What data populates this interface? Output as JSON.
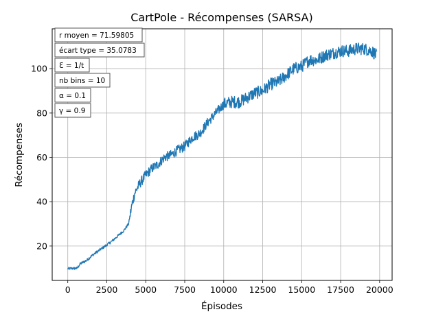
{
  "chart_data": {
    "type": "line",
    "title": "CartPole - Récompenses (SARSA)",
    "xlabel": "Épisodes",
    "ylabel": "Récompenses",
    "xlim": [
      -1000,
      20800
    ],
    "ylim": [
      4.5,
      118
    ],
    "grid": true,
    "x_ticks": [
      0,
      2500,
      5000,
      7500,
      10000,
      12500,
      15000,
      17500,
      20000
    ],
    "x_tick_labels": [
      "0",
      "2500",
      "5000",
      "7500",
      "10000",
      "12500",
      "15000",
      "17500",
      "20000"
    ],
    "y_ticks": [
      20,
      40,
      60,
      80,
      100
    ],
    "y_tick_labels": [
      "20",
      "40",
      "60",
      "80",
      "100"
    ],
    "series": [
      {
        "name": "SARSA",
        "color": "#1f77b4",
        "x": [
          0,
          600,
          800,
          1200,
          1600,
          2000,
          2400,
          2800,
          3200,
          3600,
          3900,
          4100,
          4300,
          4600,
          5000,
          5400,
          5800,
          6200,
          6600,
          7000,
          7500,
          8000,
          8500,
          9000,
          9500,
          10000,
          10500,
          11000,
          11500,
          12000,
          12500,
          13000,
          13500,
          14000,
          14500,
          15000,
          15500,
          16000,
          16500,
          17000,
          17500,
          18000,
          18500,
          19000,
          19500,
          19800
        ],
        "values": [
          9.8,
          10,
          12,
          13.5,
          16,
          18,
          20,
          22,
          24.5,
          27,
          30,
          38,
          44,
          48,
          52,
          55,
          57,
          60,
          61,
          63,
          65,
          69,
          71,
          76,
          80,
          84,
          85,
          85,
          87,
          89,
          90,
          93,
          94,
          97,
          100,
          101,
          104,
          104,
          106,
          107,
          108,
          108,
          109,
          109,
          108,
          106
        ]
      }
    ],
    "annotations": [
      "r moyen = 71.59805",
      "écart type = 35.0783",
      "Ɛ = 1/t",
      "nb bins = 10",
      "α = 0.1",
      "γ = 0.9"
    ]
  }
}
